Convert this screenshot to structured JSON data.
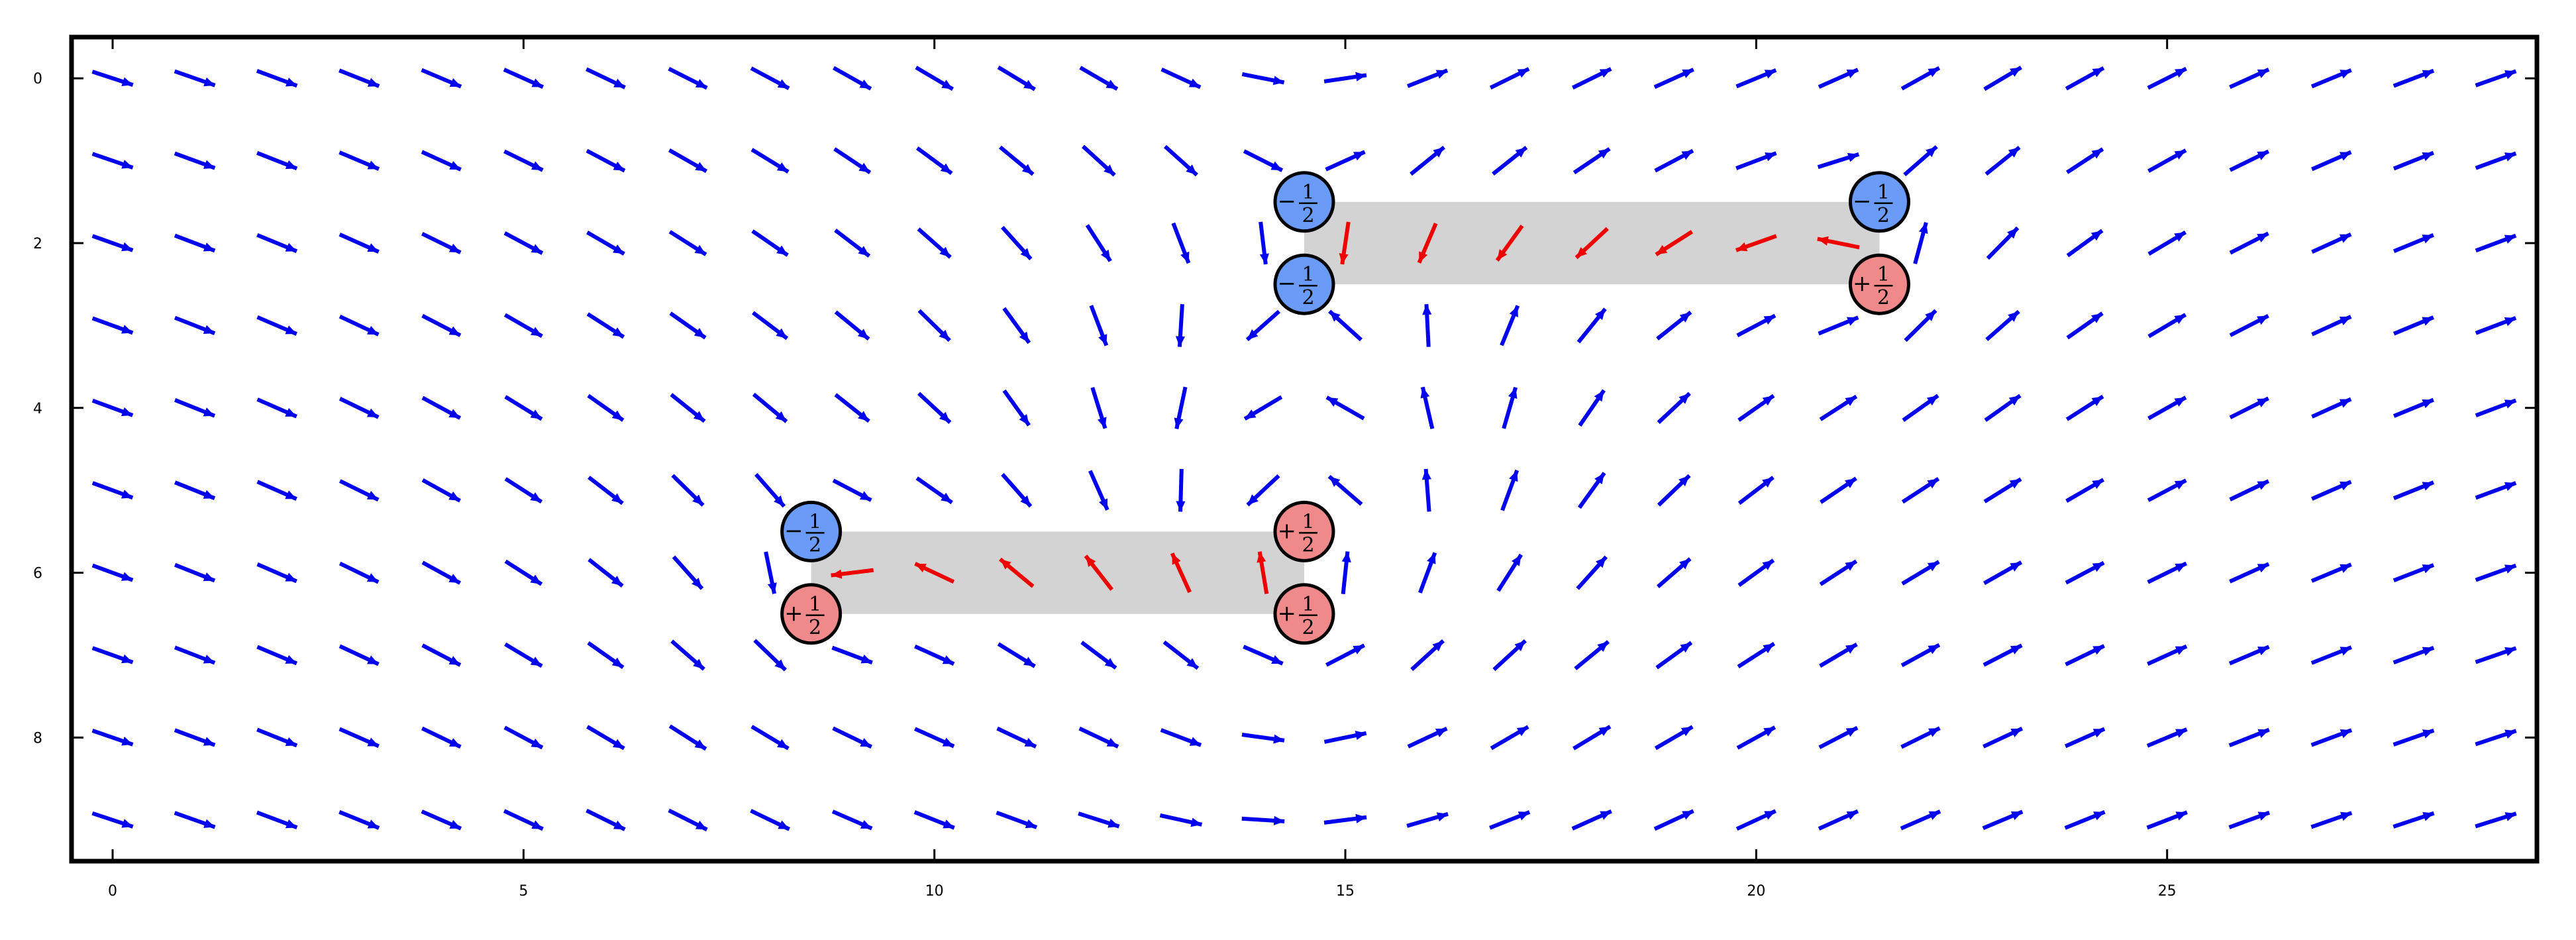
{
  "chart_data": {
    "type": "quiver",
    "title": "",
    "xlabel": "",
    "ylabel": "",
    "xlim": [
      -0.5,
      29.5
    ],
    "ylim": [
      9.5,
      -0.5
    ],
    "y_inverted": true,
    "grid": false,
    "x_ticks": [
      0,
      5,
      10,
      15,
      20,
      25
    ],
    "y_ticks": [
      0,
      2,
      4,
      6,
      8
    ],
    "x_tick_labels": [
      "0",
      "5",
      "10",
      "15",
      "20",
      "25"
    ],
    "y_tick_labels": [
      "0",
      "2",
      "4",
      "6",
      "8"
    ],
    "grid_size": {
      "cols": 30,
      "rows": 10
    },
    "field_color": "#0000ee",
    "highlight_color": "#ee0000",
    "defect_charge": 0.5,
    "defects": [
      {
        "x": 8.5,
        "y": 5.5,
        "sign": "-",
        "fraction": "1/2",
        "color": "#6a9cf7"
      },
      {
        "x": 8.5,
        "y": 6.5,
        "sign": "+",
        "fraction": "1/2",
        "color": "#f08a8a"
      },
      {
        "x": 14.5,
        "y": 5.5,
        "sign": "+",
        "fraction": "1/2",
        "color": "#f08a8a"
      },
      {
        "x": 14.5,
        "y": 6.5,
        "sign": "+",
        "fraction": "1/2",
        "color": "#f08a8a"
      },
      {
        "x": 14.5,
        "y": 1.5,
        "sign": "-",
        "fraction": "1/2",
        "color": "#6a9cf7"
      },
      {
        "x": 14.5,
        "y": 2.5,
        "sign": "-",
        "fraction": "1/2",
        "color": "#6a9cf7"
      },
      {
        "x": 21.5,
        "y": 1.5,
        "sign": "-",
        "fraction": "1/2",
        "color": "#6a9cf7"
      },
      {
        "x": 21.5,
        "y": 2.5,
        "sign": "+",
        "fraction": "1/2",
        "color": "#f08a8a"
      }
    ],
    "highlight_bands": [
      {
        "x_range": [
          8.5,
          14.5
        ],
        "y_range": [
          5.5,
          6.5
        ],
        "color": "#d3d3d3"
      },
      {
        "x_range": [
          14.5,
          21.5
        ],
        "y_range": [
          1.5,
          2.5
        ],
        "color": "#d3d3d3"
      }
    ],
    "highlighted_arrows": [
      {
        "row": 6,
        "cols": [
          9,
          10,
          11,
          12,
          13,
          14
        ]
      },
      {
        "row": 2,
        "cols": [
          15,
          16,
          17,
          18,
          19,
          20,
          21
        ]
      }
    ]
  }
}
